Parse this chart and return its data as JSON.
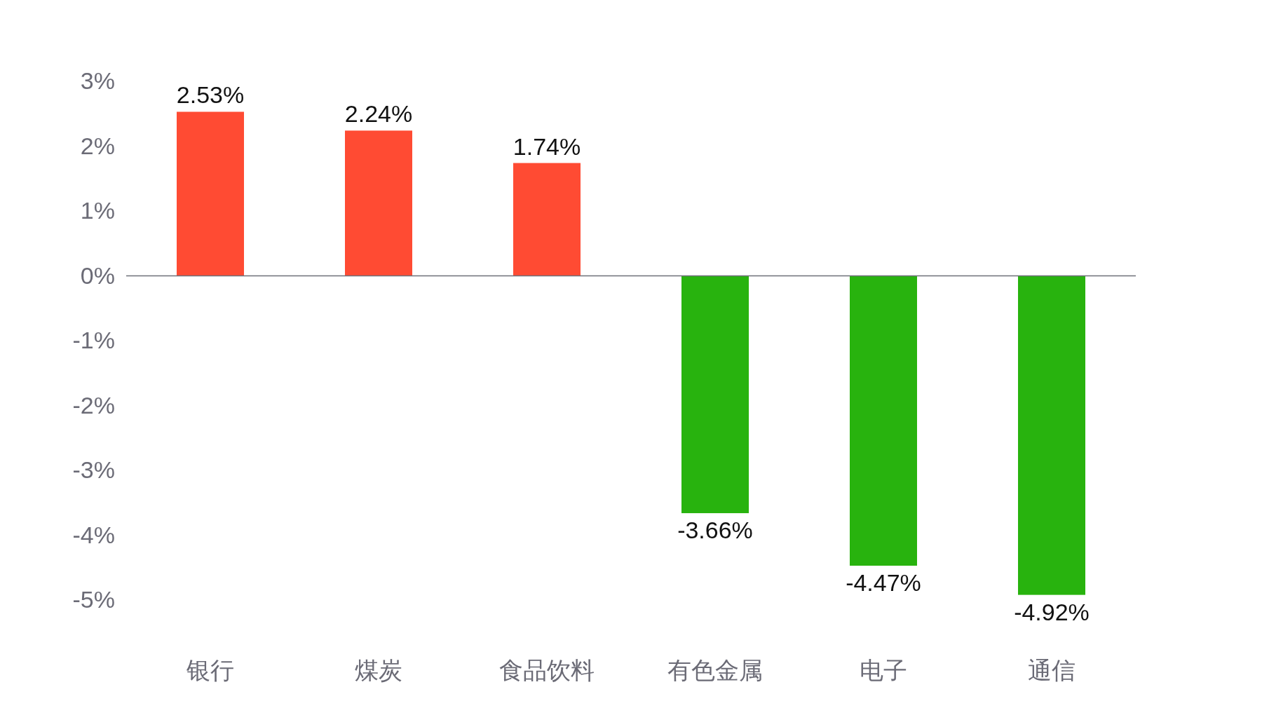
{
  "chart_data": {
    "type": "bar",
    "categories": [
      "银行",
      "煤炭",
      "食品饮料",
      "有色金属",
      "电子",
      "通信"
    ],
    "values": [
      2.53,
      2.24,
      1.74,
      -3.66,
      -4.47,
      -4.92
    ],
    "colors": [
      "#ff4b33",
      "#ff4b33",
      "#ff4b33",
      "#28b30e",
      "#28b30e",
      "#28b30e"
    ],
    "value_labels": [
      "2.53%",
      "2.24%",
      "1.74%",
      "-3.66%",
      "-4.47%",
      "-4.92%"
    ],
    "ylim": [
      -5,
      3
    ],
    "yticks": [
      {
        "value": 3,
        "label": "3%"
      },
      {
        "value": 2,
        "label": "2%"
      },
      {
        "value": 1,
        "label": "1%"
      },
      {
        "value": 0,
        "label": "0%"
      },
      {
        "value": -1,
        "label": "-1%"
      },
      {
        "value": -2,
        "label": "-2%"
      },
      {
        "value": -3,
        "label": "-3%"
      },
      {
        "value": -4,
        "label": "-4%"
      },
      {
        "value": -5,
        "label": "-5%"
      }
    ]
  }
}
